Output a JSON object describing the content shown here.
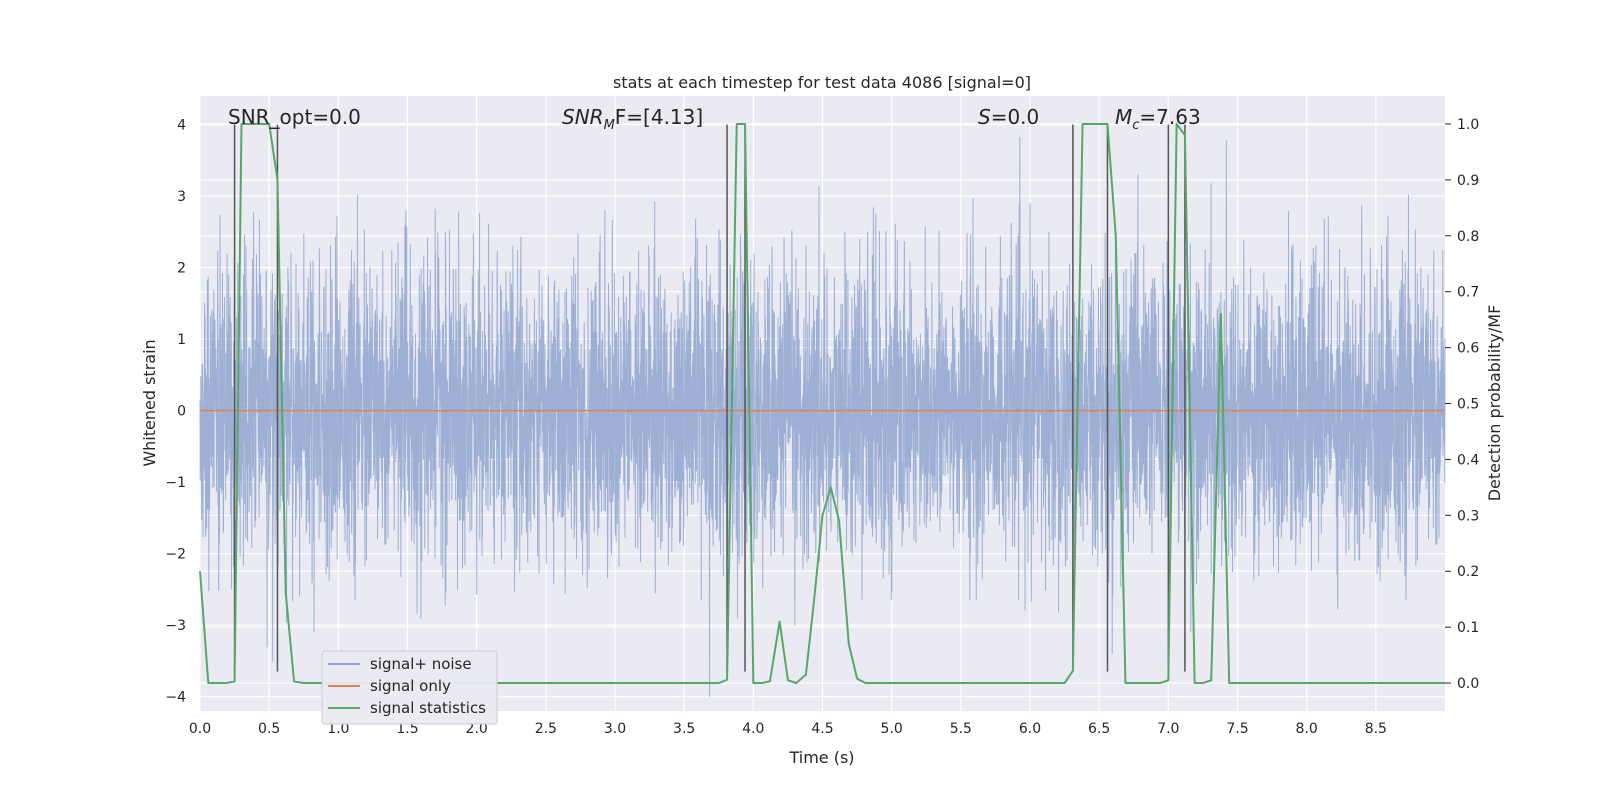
{
  "chart_data": {
    "type": "line",
    "title": "stats at each timestep for test data 4086 [signal=0]",
    "xlabel": "Time (s)",
    "ylabel_left": "Whitened strain",
    "ylabel_right": "Detection probability/MF",
    "xlim": [
      0.0,
      9.0
    ],
    "ylim_left": [
      -4.2,
      4.4
    ],
    "ylim_right": [
      -0.05,
      1.05
    ],
    "x_ticks": [
      "0.0",
      "0.5",
      "1.0",
      "1.5",
      "2.0",
      "2.5",
      "3.0",
      "3.5",
      "4.0",
      "4.5",
      "5.0",
      "5.5",
      "6.0",
      "6.5",
      "7.0",
      "7.5",
      "8.0",
      "8.5"
    ],
    "y_ticks_left": [
      "−4",
      "−3",
      "−2",
      "−1",
      "0",
      "1",
      "2",
      "3",
      "4"
    ],
    "y_ticks_right": [
      "0.0",
      "0.1",
      "0.2",
      "0.3",
      "0.4",
      "0.5",
      "0.6",
      "0.7",
      "0.8",
      "0.9",
      "1.0"
    ],
    "grid": true,
    "legend_position": "lower-left",
    "annotations": {
      "snr_opt": "SNR_opt=0.0",
      "snr_mf_main": "SNR",
      "snr_mf_sub": "M",
      "snr_mf_tail": "F=[4.13]",
      "s_main": "S",
      "s_tail": "=0.0",
      "mc_main": "M",
      "mc_sub": "c",
      "mc_tail": "=7.63"
    },
    "series": [
      {
        "name": "signal+ noise",
        "color": "#8fa4cf",
        "axis": "left",
        "kind": "noise",
        "x_range": [
          0.0,
          9.0
        ],
        "amplitude_std": 1.0
      },
      {
        "name": "signal only",
        "color": "#dd8452",
        "axis": "left",
        "x": [
          0.0,
          9.0
        ],
        "y": [
          0.0,
          0.0
        ]
      },
      {
        "name": "signal statistics",
        "color": "#55a868",
        "axis": "right",
        "x": [
          0.0,
          0.06,
          0.19,
          0.25,
          0.3,
          0.5,
          0.56,
          0.62,
          0.68,
          0.75,
          0.88,
          1.0,
          1.5,
          2.0,
          2.5,
          3.0,
          3.5,
          3.75,
          3.81,
          3.88,
          3.94,
          4.0,
          4.06,
          4.12,
          4.19,
          4.25,
          4.31,
          4.38,
          4.44,
          4.5,
          4.56,
          4.62,
          4.69,
          4.75,
          4.81,
          4.88,
          5.0,
          5.5,
          6.0,
          6.12,
          6.25,
          6.31,
          6.38,
          6.56,
          6.62,
          6.69,
          6.81,
          6.94,
          7.0,
          7.06,
          7.12,
          7.19,
          7.25,
          7.31,
          7.38,
          7.44,
          7.5,
          8.0,
          9.0
        ],
        "y": [
          0.2,
          0.0,
          0.0,
          0.003,
          1.0,
          1.0,
          0.9,
          0.16,
          0.003,
          0.0,
          0.0,
          0.0,
          0.0,
          0.0,
          0.0,
          0.0,
          0.0,
          0.0,
          0.006,
          1.0,
          1.0,
          0.0,
          0.0,
          0.003,
          0.11,
          0.005,
          0.0,
          0.015,
          0.15,
          0.3,
          0.35,
          0.29,
          0.07,
          0.008,
          0.0,
          0.0,
          0.0,
          0.0,
          0.0,
          0.0,
          0.0,
          0.022,
          1.0,
          1.0,
          0.8,
          0.0,
          0.0,
          0.0,
          0.005,
          1.0,
          0.98,
          0.0,
          0.0,
          0.005,
          0.66,
          0.0,
          0.0,
          0.0,
          0.0
        ]
      }
    ],
    "vertical_markers_x": [
      0.25,
      0.56,
      3.81,
      3.94,
      6.31,
      6.56,
      7.0,
      7.12
    ]
  }
}
